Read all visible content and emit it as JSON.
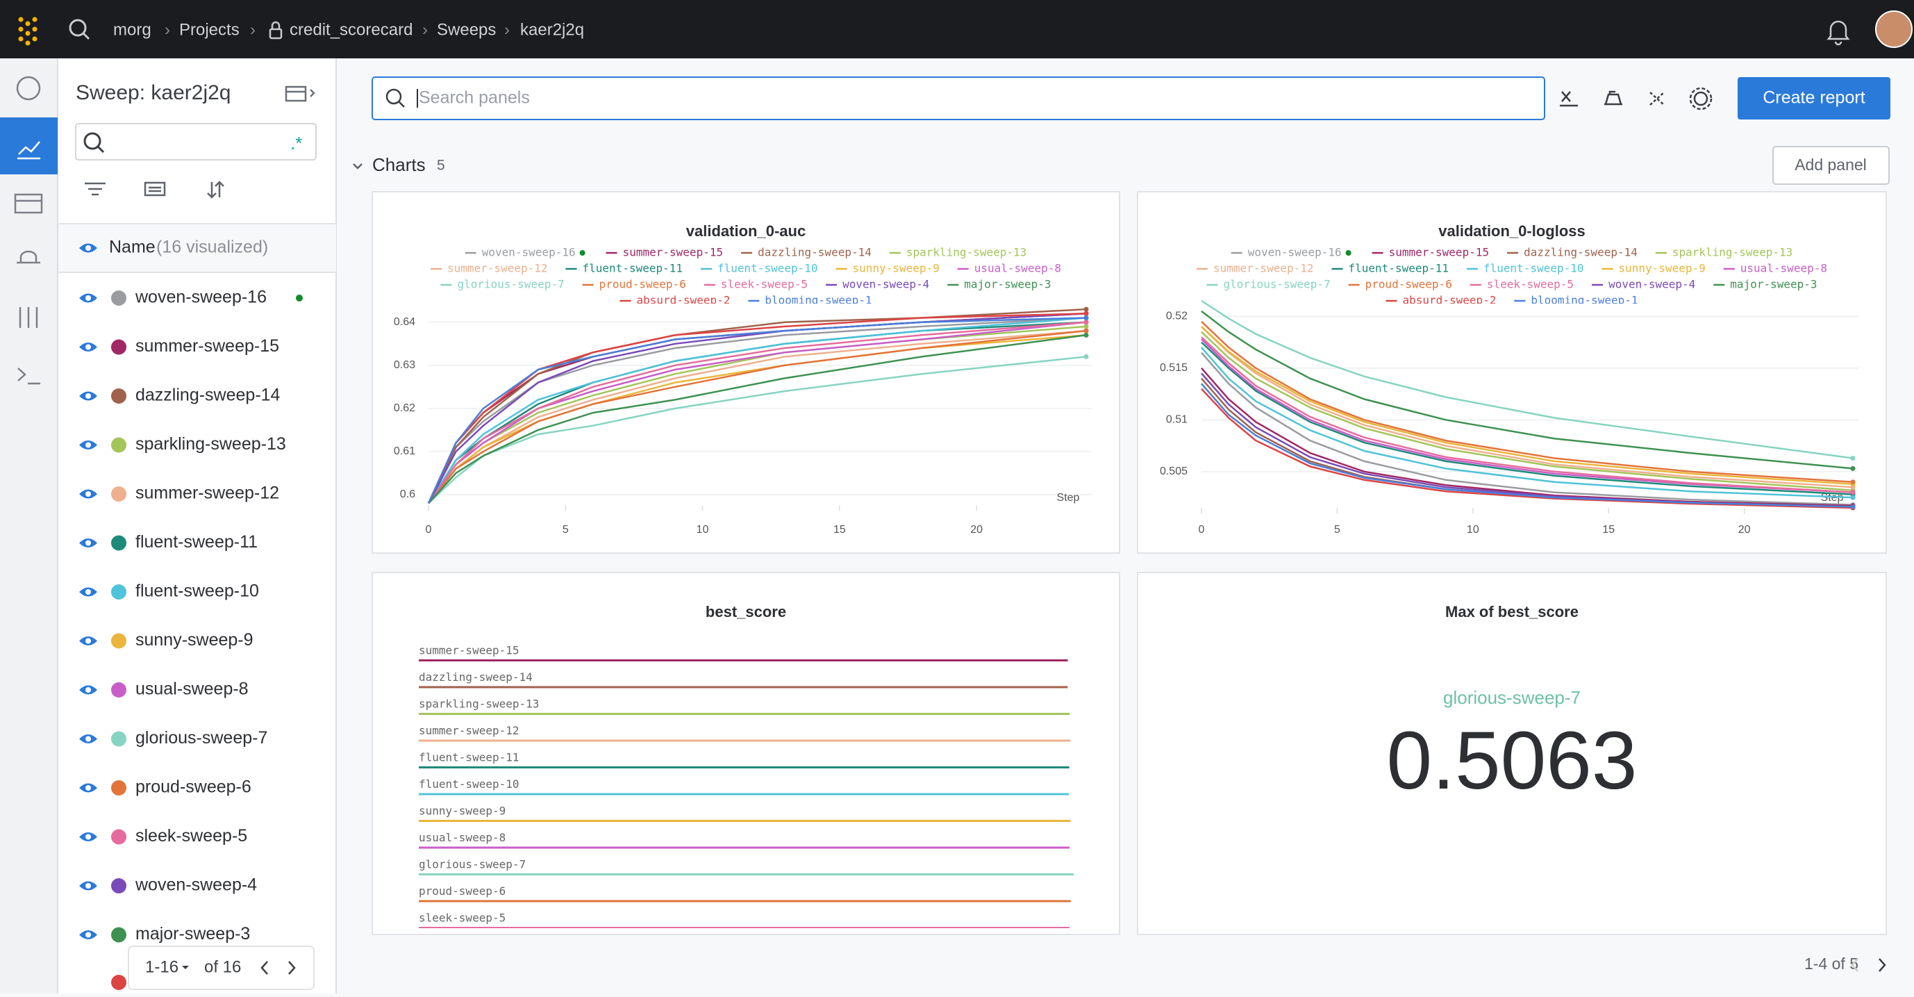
{
  "top_bar": {
    "breadcrumb": [
      "morg",
      "Projects",
      "credit_scorecard",
      "Sweeps",
      "kaer2j2q"
    ]
  },
  "sidebar": {
    "title": "Sweep: kaer2j2q",
    "column": "Name",
    "visualized": "(16 visualized)",
    "runs": [
      "woven-sweep-16",
      "summer-sweep-15",
      "dazzling-sweep-14",
      "sparkling-sweep-13",
      "summer-sweep-12",
      "fluent-sweep-11",
      "fluent-sweep-10",
      "sunny-sweep-9",
      "usual-sweep-8",
      "glorious-sweep-7",
      "proud-sweep-6",
      "sleek-sweep-5",
      "woven-sweep-4",
      "major-sweep-3"
    ],
    "pagination": {
      "range": "1-16",
      "total": "of 16"
    }
  },
  "toolbar": {
    "search_placeholder": "Search panels",
    "create_report": "Create report"
  },
  "section": {
    "title": "Charts",
    "count": 5,
    "add_panel": "Add panel"
  },
  "chart_data": [
    {
      "type": "line",
      "title": "validation_0-auc",
      "xlabel": "Step",
      "x": [
        0,
        1,
        2,
        4,
        6,
        9,
        13,
        18,
        24
      ],
      "xlim": [
        0,
        24
      ],
      "ylim": [
        0.5975,
        0.6435
      ],
      "xticks": [
        0,
        5,
        10,
        15,
        20
      ],
      "yticks": [
        0.6,
        0.61,
        0.62,
        0.63,
        0.64
      ],
      "grid": true,
      "series": [
        {
          "name": "woven-sweep-16",
          "color": "#9a9ca0",
          "values": [
            0.598,
            0.611,
            0.617,
            0.626,
            0.63,
            0.634,
            0.637,
            0.639,
            0.641
          ]
        },
        {
          "name": "summer-sweep-15",
          "color": "#a12864",
          "values": [
            0.598,
            0.612,
            0.619,
            0.628,
            0.632,
            0.636,
            0.638,
            0.64,
            0.642
          ]
        },
        {
          "name": "dazzling-sweep-14",
          "color": "#a0624b",
          "values": [
            0.598,
            0.611,
            0.618,
            0.628,
            0.633,
            0.637,
            0.64,
            0.641,
            0.643
          ]
        },
        {
          "name": "sparkling-sweep-13",
          "color": "#a3c55a",
          "values": [
            0.598,
            0.607,
            0.612,
            0.619,
            0.623,
            0.628,
            0.633,
            0.636,
            0.639
          ]
        },
        {
          "name": "summer-sweep-12",
          "color": "#eeb08e",
          "values": [
            0.598,
            0.606,
            0.611,
            0.618,
            0.622,
            0.627,
            0.632,
            0.635,
            0.638
          ]
        },
        {
          "name": "fluent-sweep-11",
          "color": "#1e8a7a",
          "values": [
            0.598,
            0.608,
            0.613,
            0.621,
            0.626,
            0.631,
            0.635,
            0.638,
            0.64
          ]
        },
        {
          "name": "fluent-sweep-10",
          "color": "#4fc3d9",
          "values": [
            0.598,
            0.608,
            0.614,
            0.622,
            0.626,
            0.631,
            0.635,
            0.638,
            0.641
          ]
        },
        {
          "name": "sunny-sweep-9",
          "color": "#eab53a",
          "values": [
            0.598,
            0.606,
            0.611,
            0.617,
            0.621,
            0.626,
            0.63,
            0.634,
            0.637
          ]
        },
        {
          "name": "usual-sweep-8",
          "color": "#c95ec9",
          "values": [
            0.598,
            0.607,
            0.612,
            0.62,
            0.624,
            0.629,
            0.633,
            0.636,
            0.64
          ]
        },
        {
          "name": "glorious-sweep-7",
          "color": "#86d4c2",
          "values": [
            0.598,
            0.604,
            0.609,
            0.614,
            0.616,
            0.62,
            0.624,
            0.628,
            0.632
          ]
        },
        {
          "name": "proud-sweep-6",
          "color": "#e2743a",
          "values": [
            0.598,
            0.606,
            0.61,
            0.617,
            0.621,
            0.625,
            0.63,
            0.634,
            0.638
          ]
        },
        {
          "name": "sleek-sweep-5",
          "color": "#e56c9c",
          "values": [
            0.598,
            0.607,
            0.613,
            0.62,
            0.625,
            0.63,
            0.634,
            0.637,
            0.64
          ]
        },
        {
          "name": "woven-sweep-4",
          "color": "#7a4bb8",
          "values": [
            0.598,
            0.61,
            0.616,
            0.626,
            0.631,
            0.635,
            0.638,
            0.64,
            0.642
          ]
        },
        {
          "name": "major-sweep-3",
          "color": "#3f9152",
          "values": [
            0.598,
            0.605,
            0.609,
            0.615,
            0.619,
            0.622,
            0.627,
            0.632,
            0.637
          ]
        },
        {
          "name": "absurd-sweep-2",
          "color": "#dc4444",
          "values": [
            0.598,
            0.612,
            0.619,
            0.629,
            0.633,
            0.637,
            0.639,
            0.641,
            0.642
          ]
        },
        {
          "name": "blooming-sweep-1",
          "color": "#4a7fd9",
          "values": [
            0.598,
            0.612,
            0.62,
            0.629,
            0.632,
            0.636,
            0.638,
            0.64,
            0.641
          ]
        }
      ]
    },
    {
      "type": "line",
      "title": "validation_0-logloss",
      "xlabel": "Step",
      "x": [
        0,
        1,
        2,
        4,
        6,
        9,
        13,
        18,
        24
      ],
      "xlim": [
        0,
        24
      ],
      "ylim": [
        0.5015,
        0.5215
      ],
      "xticks": [
        0,
        5,
        10,
        15,
        20
      ],
      "yticks": [
        0.505,
        0.51,
        0.515,
        0.52
      ],
      "grid": true,
      "series": [
        {
          "name": "woven-sweep-16",
          "color": "#9a9ca0",
          "values": [
            0.5165,
            0.5135,
            0.5112,
            0.508,
            0.506,
            0.5042,
            0.503,
            0.5023,
            0.5018
          ]
        },
        {
          "name": "summer-sweep-15",
          "color": "#a12864",
          "values": [
            0.515,
            0.512,
            0.5098,
            0.5068,
            0.505,
            0.5037,
            0.5027,
            0.5021,
            0.5017
          ]
        },
        {
          "name": "dazzling-sweep-14",
          "color": "#a0624b",
          "values": [
            0.514,
            0.511,
            0.5088,
            0.506,
            0.5045,
            0.5033,
            0.5025,
            0.502,
            0.5016
          ]
        },
        {
          "name": "sparkling-sweep-13",
          "color": "#a3c55a",
          "values": [
            0.5185,
            0.516,
            0.514,
            0.5112,
            0.5092,
            0.5072,
            0.5055,
            0.5043,
            0.5032
          ]
        },
        {
          "name": "summer-sweep-12",
          "color": "#eeb08e",
          "values": [
            0.519,
            0.5165,
            0.5145,
            0.5115,
            0.5095,
            0.5075,
            0.5057,
            0.5045,
            0.5035
          ]
        },
        {
          "name": "fluent-sweep-11",
          "color": "#1e8a7a",
          "values": [
            0.5175,
            0.515,
            0.5128,
            0.5098,
            0.5078,
            0.506,
            0.5046,
            0.5036,
            0.5028
          ]
        },
        {
          "name": "fluent-sweep-10",
          "color": "#4fc3d9",
          "values": [
            0.517,
            0.514,
            0.5118,
            0.509,
            0.507,
            0.5053,
            0.504,
            0.5031,
            0.5025
          ]
        },
        {
          "name": "sunny-sweep-9",
          "color": "#eab53a",
          "values": [
            0.519,
            0.5166,
            0.5147,
            0.5118,
            0.5098,
            0.5078,
            0.506,
            0.5048,
            0.5038
          ]
        },
        {
          "name": "usual-sweep-8",
          "color": "#c95ec9",
          "values": [
            0.5178,
            0.5152,
            0.513,
            0.51,
            0.508,
            0.5062,
            0.5048,
            0.5038,
            0.503
          ]
        },
        {
          "name": "glorious-sweep-7",
          "color": "#86d4c2",
          "values": [
            0.5215,
            0.5198,
            0.5183,
            0.516,
            0.5142,
            0.5122,
            0.5102,
            0.5084,
            0.5063
          ]
        },
        {
          "name": "proud-sweep-6",
          "color": "#e2743a",
          "values": [
            0.5195,
            0.517,
            0.515,
            0.512,
            0.51,
            0.508,
            0.5063,
            0.505,
            0.504
          ]
        },
        {
          "name": "sleek-sweep-5",
          "color": "#e56c9c",
          "values": [
            0.518,
            0.5155,
            0.5133,
            0.5103,
            0.5083,
            0.5064,
            0.505,
            0.5039,
            0.503
          ]
        },
        {
          "name": "woven-sweep-4",
          "color": "#7a4bb8",
          "values": [
            0.5145,
            0.5115,
            0.5093,
            0.5064,
            0.5048,
            0.5035,
            0.5026,
            0.502,
            0.5016
          ]
        },
        {
          "name": "major-sweep-3",
          "color": "#3f9152",
          "values": [
            0.5205,
            0.5185,
            0.5168,
            0.514,
            0.512,
            0.51,
            0.5082,
            0.5068,
            0.5053
          ]
        },
        {
          "name": "absurd-sweep-2",
          "color": "#dc4444",
          "values": [
            0.513,
            0.5102,
            0.508,
            0.5055,
            0.5042,
            0.5031,
            0.5024,
            0.5019,
            0.5015
          ]
        },
        {
          "name": "blooming-sweep-1",
          "color": "#4a7fd9",
          "values": [
            0.5135,
            0.5105,
            0.5085,
            0.5058,
            0.5044,
            0.5033,
            0.5025,
            0.502,
            0.5016
          ]
        }
      ]
    },
    {
      "type": "hbar",
      "title": "best_score",
      "xlim": [
        0,
        0.51
      ],
      "categories": [
        "summer-sweep-15",
        "dazzling-sweep-14",
        "sparkling-sweep-13",
        "summer-sweep-12",
        "fluent-sweep-11",
        "fluent-sweep-10",
        "sunny-sweep-9",
        "usual-sweep-8",
        "glorious-sweep-7",
        "proud-sweep-6",
        "sleek-sweep-5"
      ],
      "values": [
        0.5017,
        0.5016,
        0.5032,
        0.5035,
        0.5028,
        0.5025,
        0.5038,
        0.503,
        0.5063,
        0.504,
        0.503
      ],
      "colors": [
        "#a12864",
        "#a0624b",
        "#a3c55a",
        "#eeb08e",
        "#1e8a7a",
        "#4fc3d9",
        "#eab53a",
        "#c95ec9",
        "#86d4c2",
        "#e2743a",
        "#e56c9c"
      ]
    },
    {
      "type": "scalar",
      "title": "Max of best_score",
      "name": "glorious-sweep-7",
      "value": 0.5063,
      "color": "#6fc0a6"
    }
  ],
  "pagination": "1-4 of 5"
}
